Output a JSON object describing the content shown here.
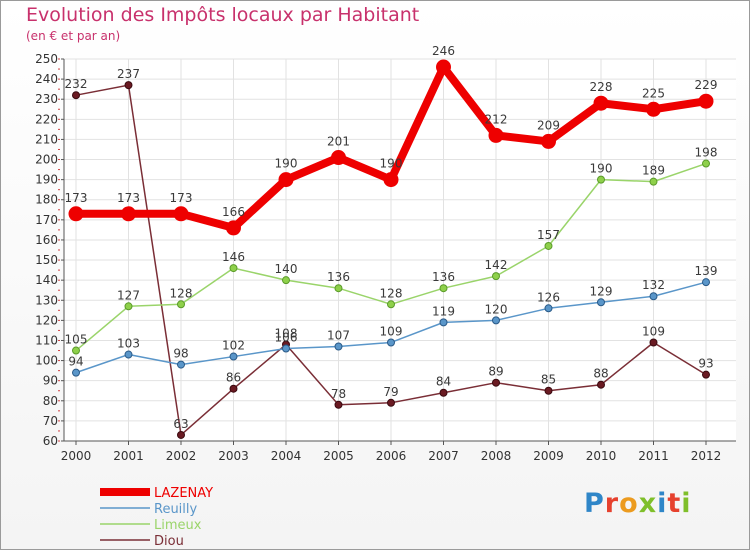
{
  "header": {
    "title": "Evolution des Impôts locaux par Habitant",
    "subtitle": "(en € et par an)"
  },
  "logo": {
    "text": "Proxiti",
    "letters": [
      {
        "ch": "P",
        "color": "#2f86c8"
      },
      {
        "ch": "r",
        "color": "#e6412e"
      },
      {
        "ch": "o",
        "color": "#ec9b1f"
      },
      {
        "ch": "x",
        "color": "#7fbf2a"
      },
      {
        "ch": "i",
        "color": "#2f86c8"
      },
      {
        "ch": "t",
        "color": "#e6412e"
      },
      {
        "ch": "i",
        "color": "#7fbf2a"
      }
    ]
  },
  "chart_data": {
    "type": "line",
    "title": "Evolution des Impôts locaux par Habitant",
    "subtitle": "(en € et par an)",
    "xlabel": "",
    "ylabel": "",
    "x": [
      "2000",
      "2001",
      "2002",
      "2003",
      "2004",
      "2005",
      "2006",
      "2007",
      "2008",
      "2009",
      "2010",
      "2011",
      "2012"
    ],
    "ylim": [
      60,
      250
    ],
    "yticks": [
      60,
      70,
      80,
      90,
      100,
      110,
      120,
      130,
      140,
      150,
      160,
      170,
      180,
      190,
      200,
      210,
      220,
      230,
      240,
      250
    ],
    "grid": true,
    "legend_position": "bottom-left",
    "series": [
      {
        "name": "LAZENAY",
        "color": "#ee0000",
        "values": [
          173,
          173,
          173,
          166,
          190,
          201,
          190,
          246,
          212,
          209,
          228,
          225,
          229
        ],
        "labels": [
          "173",
          "173",
          "173",
          "166",
          "190",
          "201",
          "190",
          "246",
          "212",
          "209",
          "228",
          "225",
          "229"
        ]
      },
      {
        "name": "Reuilly",
        "color": "#5a96c9",
        "values": [
          94,
          103,
          98,
          102,
          106,
          107,
          109,
          119,
          120,
          126,
          129,
          132,
          139
        ],
        "labels": [
          "94",
          "103",
          "98",
          "102",
          "106",
          "107",
          "109",
          "119",
          "120",
          "126",
          "129",
          "132",
          "139"
        ]
      },
      {
        "name": "Limeux",
        "color": "#9ad46a",
        "values": [
          105,
          127,
          128,
          146,
          140,
          136,
          128,
          136,
          142,
          157,
          190,
          189,
          198
        ],
        "labels": [
          "105",
          "127",
          "128",
          "146",
          "140",
          "136",
          "128",
          "136",
          "142",
          "157",
          "190",
          "189",
          "198"
        ]
      },
      {
        "name": "Diou",
        "color": "#7a2e36",
        "values": [
          232,
          237,
          63,
          86,
          108,
          78,
          79,
          84,
          89,
          85,
          88,
          109,
          93
        ],
        "labels": [
          "232",
          "237",
          "63",
          "86",
          "108",
          "78",
          "79",
          "84",
          "89",
          "85",
          "88",
          "109",
          "93"
        ]
      }
    ]
  }
}
